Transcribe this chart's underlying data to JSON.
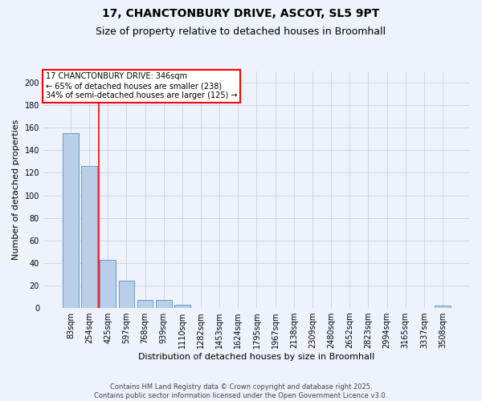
{
  "title1": "17, CHANCTONBURY DRIVE, ASCOT, SL5 9PT",
  "title2": "Size of property relative to detached houses in Broomhall",
  "xlabel": "Distribution of detached houses by size in Broomhall",
  "ylabel": "Number of detached properties",
  "categories": [
    "83sqm",
    "254sqm",
    "425sqm",
    "597sqm",
    "768sqm",
    "939sqm",
    "1110sqm",
    "1282sqm",
    "1453sqm",
    "1624sqm",
    "1795sqm",
    "1967sqm",
    "2138sqm",
    "2309sqm",
    "2480sqm",
    "2652sqm",
    "2823sqm",
    "2994sqm",
    "3165sqm",
    "3337sqm",
    "3508sqm"
  ],
  "values": [
    155,
    126,
    43,
    24,
    7,
    7,
    3,
    0,
    0,
    0,
    0,
    0,
    0,
    0,
    0,
    0,
    0,
    0,
    0,
    0,
    2
  ],
  "bar_color": "#b8cfe8",
  "bar_edge_color": "#6699cc",
  "vline_x": 1.5,
  "vline_color": "red",
  "annotation_text": "17 CHANCTONBURY DRIVE: 346sqm\n← 65% of detached houses are smaller (238)\n34% of semi-detached houses are larger (125) →",
  "annotation_box_color": "white",
  "annotation_box_edge_color": "red",
  "ylim": [
    0,
    210
  ],
  "yticks": [
    0,
    20,
    40,
    60,
    80,
    100,
    120,
    140,
    160,
    180,
    200
  ],
  "background_color": "#eef2fb",
  "grid_color": "#c8d0e8",
  "footer": "Contains HM Land Registry data © Crown copyright and database right 2025.\nContains public sector information licensed under the Open Government Licence v3.0.",
  "title_fontsize": 10,
  "subtitle_fontsize": 9,
  "axis_label_fontsize": 8,
  "tick_fontsize": 7,
  "annot_fontsize": 7,
  "footer_fontsize": 6
}
